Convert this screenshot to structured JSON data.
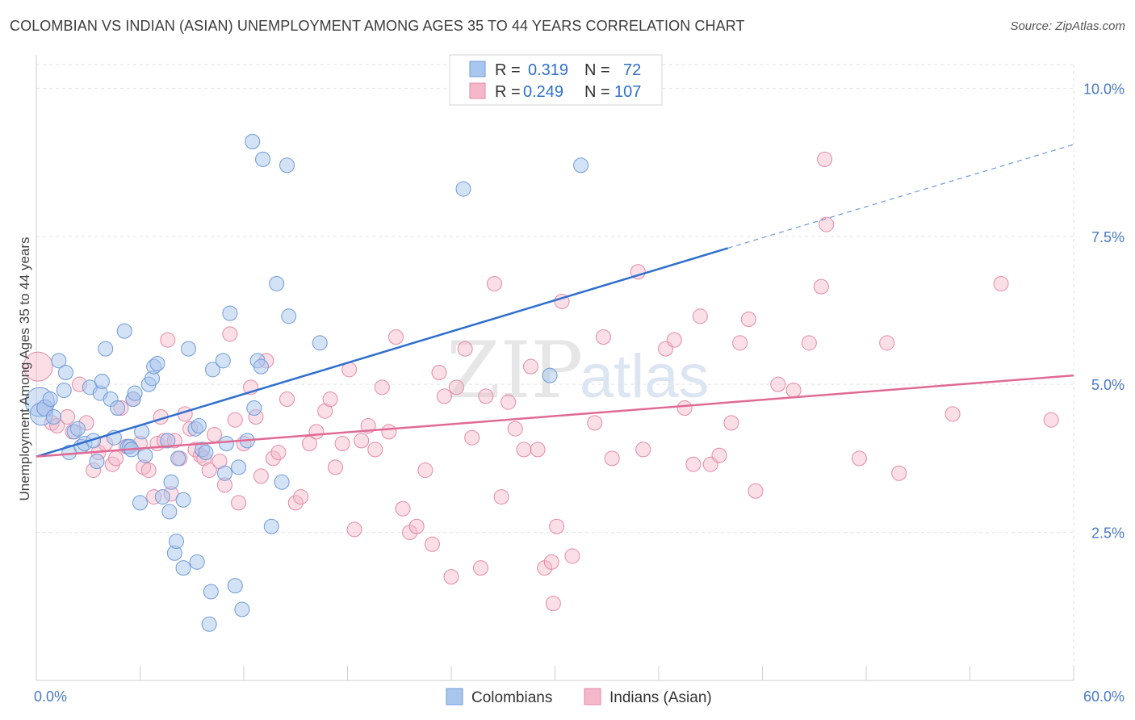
{
  "title": "COLOMBIAN VS INDIAN (ASIAN) UNEMPLOYMENT AMONG AGES 35 TO 44 YEARS CORRELATION CHART",
  "source": "Source: ZipAtlas.com",
  "watermark": {
    "zip": "ZIP",
    "atlas": "atlas"
  },
  "colors": {
    "blue_fill": "#a9c6ee",
    "blue_stroke": "#6f9bd8",
    "blue_line": "#2f6fcd",
    "pink_fill": "#f5b7ca",
    "pink_stroke": "#e58aa7",
    "pink_line": "#e06a94",
    "grid": "#e2e2e2",
    "tick_text": "#4a79c4"
  },
  "legend_top": [
    {
      "r_label": "R = ",
      "r_value": "0.319",
      "n_label": "N = ",
      "n_value": "72"
    },
    {
      "r_label": "R = ",
      "r_value": "0.249",
      "n_label": "N = ",
      "n_value": "107"
    }
  ],
  "legend_bottom": [
    "Colombians",
    "Indians (Asian)"
  ],
  "chart_data": {
    "type": "scatter",
    "ylabel": "Unemployment Among Ages 35 to 44 years",
    "xlabel": "",
    "xlim": [
      0,
      60
    ],
    "ylim": [
      0,
      10.4
    ],
    "x_tick_labels": [
      "0.0%",
      "60.0%"
    ],
    "y_ticks": [
      2.5,
      5.0,
      7.5,
      10.0
    ],
    "y_tick_labels": [
      "2.5%",
      "5.0%",
      "7.5%",
      "10.0%"
    ],
    "grid": true,
    "legend_placement": "top-center",
    "series": [
      {
        "name": "Colombians",
        "r": 0.319,
        "n": 72,
        "trend": {
          "x0": 0,
          "y0": 3.78,
          "x1": 40,
          "y1": 7.3,
          "dash_to_x": 60,
          "dash_to_y": 9.05
        },
        "points": [
          [
            0.2,
            4.7,
            18
          ],
          [
            0.3,
            4.5,
            14
          ],
          [
            0.5,
            4.6,
            10
          ],
          [
            0.8,
            4.75,
            9
          ],
          [
            1.0,
            4.45,
            9
          ],
          [
            1.3,
            5.4,
            9
          ],
          [
            1.6,
            4.9,
            9
          ],
          [
            1.7,
            5.2,
            9
          ],
          [
            1.9,
            3.85,
            9
          ],
          [
            2.2,
            4.2,
            9
          ],
          [
            2.4,
            4.25,
            9
          ],
          [
            2.6,
            3.95,
            9
          ],
          [
            2.8,
            4.0,
            9
          ],
          [
            3.1,
            4.95,
            9
          ],
          [
            3.3,
            4.05,
            9
          ],
          [
            3.5,
            3.7,
            9
          ],
          [
            3.7,
            4.85,
            9
          ],
          [
            3.8,
            5.05,
            9
          ],
          [
            4.0,
            5.6,
            9
          ],
          [
            4.3,
            4.75,
            9
          ],
          [
            4.5,
            4.1,
            9
          ],
          [
            4.7,
            4.6,
            9
          ],
          [
            5.1,
            5.9,
            9
          ],
          [
            5.3,
            3.95,
            9
          ],
          [
            5.6,
            4.75,
            9
          ],
          [
            5.4,
            3.95,
            9
          ],
          [
            5.5,
            3.9,
            9
          ],
          [
            5.7,
            4.85,
            9
          ],
          [
            6.0,
            3.0,
            9
          ],
          [
            6.1,
            4.2,
            9
          ],
          [
            6.3,
            3.8,
            9
          ],
          [
            6.5,
            5.0,
            9
          ],
          [
            6.7,
            5.1,
            9
          ],
          [
            6.8,
            5.3,
            9
          ],
          [
            7.0,
            5.35,
            9
          ],
          [
            7.3,
            3.1,
            9
          ],
          [
            7.6,
            4.05,
            9
          ],
          [
            7.7,
            2.85,
            9
          ],
          [
            7.8,
            3.35,
            9
          ],
          [
            8.0,
            2.15,
            9
          ],
          [
            8.1,
            2.35,
            9
          ],
          [
            8.2,
            3.75,
            9
          ],
          [
            8.5,
            3.05,
            9
          ],
          [
            8.5,
            1.9,
            9
          ],
          [
            8.8,
            5.6,
            9
          ],
          [
            9.2,
            4.25,
            9
          ],
          [
            9.3,
            2.0,
            9
          ],
          [
            9.4,
            4.3,
            9
          ],
          [
            9.6,
            3.9,
            9
          ],
          [
            9.8,
            3.85,
            9
          ],
          [
            10.2,
            5.25,
            9
          ],
          [
            10.1,
            1.5,
            9
          ],
          [
            10.0,
            0.95,
            9
          ],
          [
            10.8,
            5.4,
            9
          ],
          [
            10.9,
            3.5,
            9
          ],
          [
            11.0,
            4.0,
            9
          ],
          [
            11.2,
            6.2,
            9
          ],
          [
            11.5,
            1.6,
            9
          ],
          [
            11.7,
            3.6,
            9
          ],
          [
            11.9,
            1.2,
            9
          ],
          [
            12.2,
            4.05,
            9
          ],
          [
            12.5,
            9.1,
            9
          ],
          [
            12.6,
            4.6,
            9
          ],
          [
            12.8,
            5.4,
            9
          ],
          [
            13.0,
            5.3,
            9
          ],
          [
            13.1,
            8.8,
            9
          ],
          [
            13.6,
            2.6,
            9
          ],
          [
            13.9,
            6.7,
            9
          ],
          [
            14.5,
            8.7,
            9
          ],
          [
            14.6,
            6.15,
            9
          ],
          [
            14.2,
            3.35,
            9
          ],
          [
            16.4,
            5.7,
            9
          ],
          [
            24.7,
            8.3,
            9
          ],
          [
            29.7,
            5.15,
            9
          ],
          [
            31.5,
            8.7,
            9
          ]
        ]
      },
      {
        "name": "Indians (Asian)",
        "r": 0.249,
        "n": 107,
        "trend": {
          "x0": 0,
          "y0": 3.78,
          "x1": 60,
          "y1": 5.15
        },
        "points": [
          [
            0.1,
            5.3,
            18
          ],
          [
            0.5,
            4.6,
            10
          ],
          [
            0.9,
            4.35,
            9
          ],
          [
            1.2,
            4.3,
            9
          ],
          [
            1.8,
            4.45,
            9
          ],
          [
            2.1,
            4.2,
            9
          ],
          [
            2.5,
            5.0,
            9
          ],
          [
            2.9,
            4.35,
            9
          ],
          [
            3.3,
            3.55,
            9
          ],
          [
            3.6,
            3.85,
            9
          ],
          [
            4.0,
            4.0,
            9
          ],
          [
            4.4,
            3.65,
            9
          ],
          [
            4.6,
            3.75,
            9
          ],
          [
            4.9,
            4.6,
            9
          ],
          [
            5.2,
            3.95,
            9
          ],
          [
            5.6,
            4.75,
            9
          ],
          [
            6.0,
            4.0,
            9
          ],
          [
            6.2,
            3.6,
            9
          ],
          [
            6.5,
            3.55,
            9
          ],
          [
            6.8,
            3.1,
            9
          ],
          [
            7.0,
            4.0,
            9
          ],
          [
            7.2,
            4.45,
            9
          ],
          [
            7.4,
            4.05,
            9
          ],
          [
            7.6,
            5.75,
            9
          ],
          [
            7.8,
            3.15,
            9
          ],
          [
            8.0,
            4.05,
            9
          ],
          [
            8.3,
            3.75,
            9
          ],
          [
            8.6,
            4.5,
            9
          ],
          [
            8.9,
            4.25,
            9
          ],
          [
            9.2,
            3.9,
            9
          ],
          [
            9.5,
            3.8,
            9
          ],
          [
            9.7,
            3.75,
            9
          ],
          [
            10.0,
            3.55,
            9
          ],
          [
            10.3,
            4.15,
            9
          ],
          [
            10.6,
            3.7,
            9
          ],
          [
            10.9,
            3.3,
            9
          ],
          [
            11.2,
            5.85,
            9
          ],
          [
            11.5,
            4.4,
            9
          ],
          [
            11.7,
            3.0,
            9
          ],
          [
            12.0,
            4.0,
            9
          ],
          [
            12.4,
            4.95,
            9
          ],
          [
            12.7,
            4.45,
            9
          ],
          [
            13.0,
            3.45,
            9
          ],
          [
            13.3,
            5.4,
            9
          ],
          [
            13.7,
            3.75,
            9
          ],
          [
            14.0,
            3.85,
            9
          ],
          [
            14.5,
            4.75,
            9
          ],
          [
            15.0,
            3.0,
            9
          ],
          [
            15.3,
            3.1,
            9
          ],
          [
            15.8,
            4.0,
            9
          ],
          [
            16.2,
            4.2,
            9
          ],
          [
            16.7,
            4.55,
            9
          ],
          [
            17.0,
            4.75,
            9
          ],
          [
            17.3,
            3.6,
            9
          ],
          [
            17.7,
            4.0,
            9
          ],
          [
            18.1,
            5.25,
            9
          ],
          [
            18.4,
            2.55,
            9
          ],
          [
            18.8,
            4.05,
            9
          ],
          [
            19.2,
            4.3,
            9
          ],
          [
            19.6,
            3.9,
            9
          ],
          [
            20.0,
            4.95,
            9
          ],
          [
            20.4,
            4.2,
            9
          ],
          [
            20.8,
            5.8,
            9
          ],
          [
            21.2,
            2.9,
            9
          ],
          [
            21.6,
            2.5,
            9
          ],
          [
            22.0,
            2.6,
            9
          ],
          [
            22.5,
            3.55,
            9
          ],
          [
            22.9,
            2.3,
            9
          ],
          [
            23.3,
            5.2,
            9
          ],
          [
            23.6,
            4.8,
            9
          ],
          [
            24.0,
            1.75,
            9
          ],
          [
            24.3,
            4.95,
            9
          ],
          [
            24.8,
            5.6,
            9
          ],
          [
            25.2,
            4.1,
            9
          ],
          [
            25.7,
            1.9,
            9
          ],
          [
            26.0,
            4.8,
            9
          ],
          [
            26.5,
            6.7,
            9
          ],
          [
            26.9,
            3.1,
            9
          ],
          [
            27.3,
            4.7,
            9
          ],
          [
            27.7,
            4.25,
            9
          ],
          [
            28.2,
            3.9,
            9
          ],
          [
            28.6,
            5.3,
            9
          ],
          [
            29.0,
            3.9,
            9
          ],
          [
            29.4,
            1.9,
            9
          ],
          [
            29.8,
            2.0,
            9
          ],
          [
            30.1,
            2.6,
            9
          ],
          [
            30.4,
            6.4,
            9
          ],
          [
            29.9,
            1.3,
            9
          ],
          [
            31.0,
            2.1,
            9
          ],
          [
            32.3,
            4.35,
            9
          ],
          [
            32.8,
            5.8,
            9
          ],
          [
            33.3,
            3.75,
            9
          ],
          [
            34.8,
            6.9,
            9
          ],
          [
            35.1,
            3.9,
            9
          ],
          [
            36.4,
            5.6,
            9
          ],
          [
            36.9,
            5.75,
            9
          ],
          [
            37.5,
            4.6,
            9
          ],
          [
            38.0,
            3.65,
            9
          ],
          [
            38.4,
            6.15,
            9
          ],
          [
            39.0,
            3.65,
            9
          ],
          [
            39.5,
            3.8,
            9
          ],
          [
            40.2,
            4.35,
            9
          ],
          [
            40.7,
            5.7,
            9
          ],
          [
            41.2,
            6.1,
            9
          ],
          [
            41.6,
            3.2,
            9
          ],
          [
            42.9,
            5.0,
            9
          ],
          [
            43.8,
            4.9,
            9
          ],
          [
            44.7,
            5.7,
            9
          ],
          [
            45.4,
            6.65,
            9
          ],
          [
            45.7,
            7.7,
            9
          ],
          [
            45.6,
            8.8,
            9
          ],
          [
            47.6,
            3.75,
            9
          ],
          [
            49.2,
            5.7,
            9
          ],
          [
            49.9,
            3.5,
            9
          ],
          [
            53.0,
            4.5,
            9
          ],
          [
            55.8,
            6.7,
            9
          ],
          [
            58.7,
            4.4,
            9
          ]
        ]
      }
    ]
  }
}
